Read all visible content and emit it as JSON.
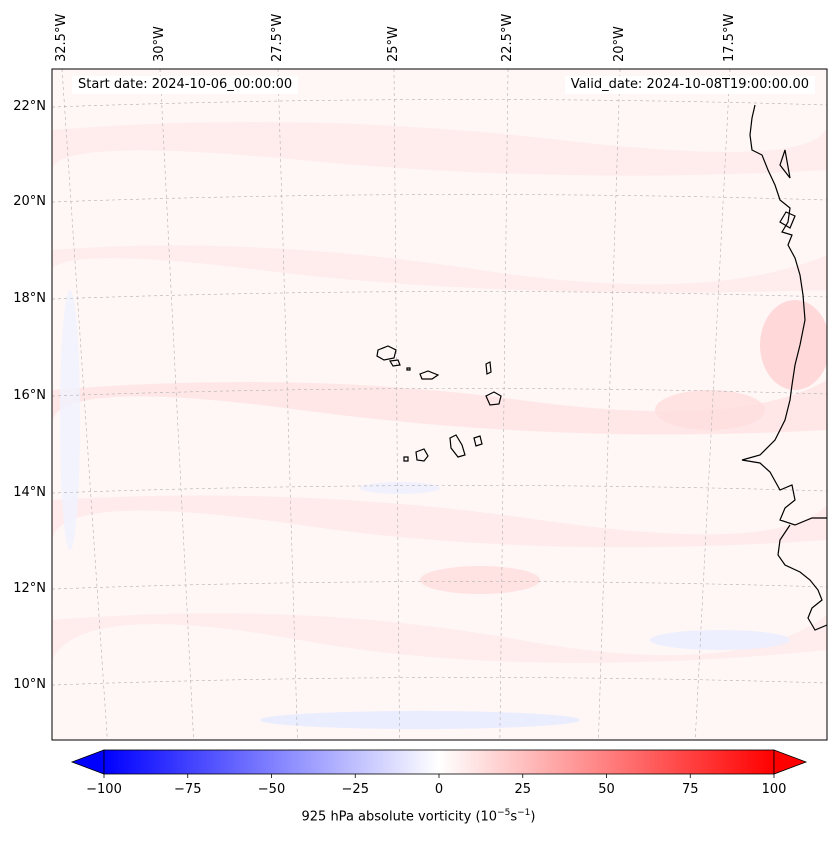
{
  "map": {
    "region": "Cabo Verde islands and West African coast, eastern tropical Atlantic",
    "projection": "lambert conformal",
    "lon_labels": [
      "32.5°W",
      "30°W",
      "27.5°W",
      "25°W",
      "22.5°W",
      "20°W",
      "17.5°W"
    ],
    "lat_labels": [
      "22°N",
      "20°N",
      "18°N",
      "16°N",
      "14°N",
      "12°N",
      "10°N"
    ],
    "lon_values": [
      -32.5,
      -30,
      -27.5,
      -25,
      -22.5,
      -20,
      -17.5
    ],
    "lat_values": [
      22,
      20,
      18,
      16,
      14,
      12,
      10
    ],
    "start_date_label": "Start date: 2024-10-06_00:00:00",
    "valid_date_label": "Valid_date: 2024-10-08T19:00:00.00"
  },
  "colorbar": {
    "title_prefix": "925 hPa absolute vorticity (10",
    "title_exp1": "−5",
    "title_mid": "s",
    "title_exp2": "−1",
    "title_suffix": ")",
    "tick_labels": [
      "−100",
      "−75",
      "−50",
      "−25",
      "0",
      "25",
      "50",
      "75",
      "100"
    ],
    "tick_values": [
      -100,
      -75,
      -50,
      -25,
      0,
      25,
      50,
      75,
      100
    ],
    "vmin": -100,
    "vmax": 100,
    "negative_color": "#0000ff",
    "zero_color": "#ffffff",
    "positive_color": "#ff0000",
    "extend": "both"
  },
  "colors": {
    "land_outline": "#000000",
    "grid": "#b0b0b0",
    "frame": "#000000"
  }
}
